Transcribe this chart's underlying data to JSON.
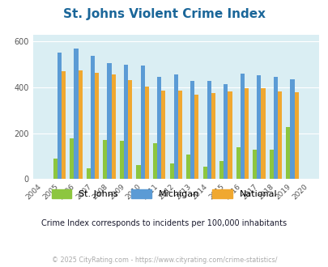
{
  "title": "St. Johns Violent Crime Index",
  "years": [
    2004,
    2005,
    2006,
    2007,
    2008,
    2009,
    2010,
    2011,
    2012,
    2013,
    2014,
    2015,
    2016,
    2017,
    2018,
    2019,
    2020
  ],
  "st_johns": [
    null,
    88,
    178,
    47,
    170,
    168,
    60,
    155,
    68,
    105,
    55,
    78,
    138,
    128,
    128,
    228,
    null
  ],
  "michigan": [
    null,
    552,
    568,
    538,
    505,
    500,
    495,
    445,
    458,
    428,
    428,
    413,
    460,
    452,
    447,
    435,
    null
  ],
  "national": [
    null,
    470,
    474,
    465,
    455,
    430,
    403,
    387,
    387,
    367,
    375,
    383,
    398,
    395,
    382,
    379,
    null
  ],
  "ylim": [
    0,
    630
  ],
  "yticks": [
    0,
    200,
    400,
    600
  ],
  "color_stjohns": "#8dc63f",
  "color_michigan": "#5b9bd5",
  "color_national": "#f0a830",
  "color_title": "#1a6699",
  "color_plot_bg": "#daeef3",
  "color_subtitle": "#1a1a2e",
  "color_footer": "#aaaaaa",
  "subtitle": "Crime Index corresponds to incidents per 100,000 inhabitants",
  "footer": "© 2025 CityRating.com - https://www.cityrating.com/crime-statistics/",
  "bar_width": 0.25
}
